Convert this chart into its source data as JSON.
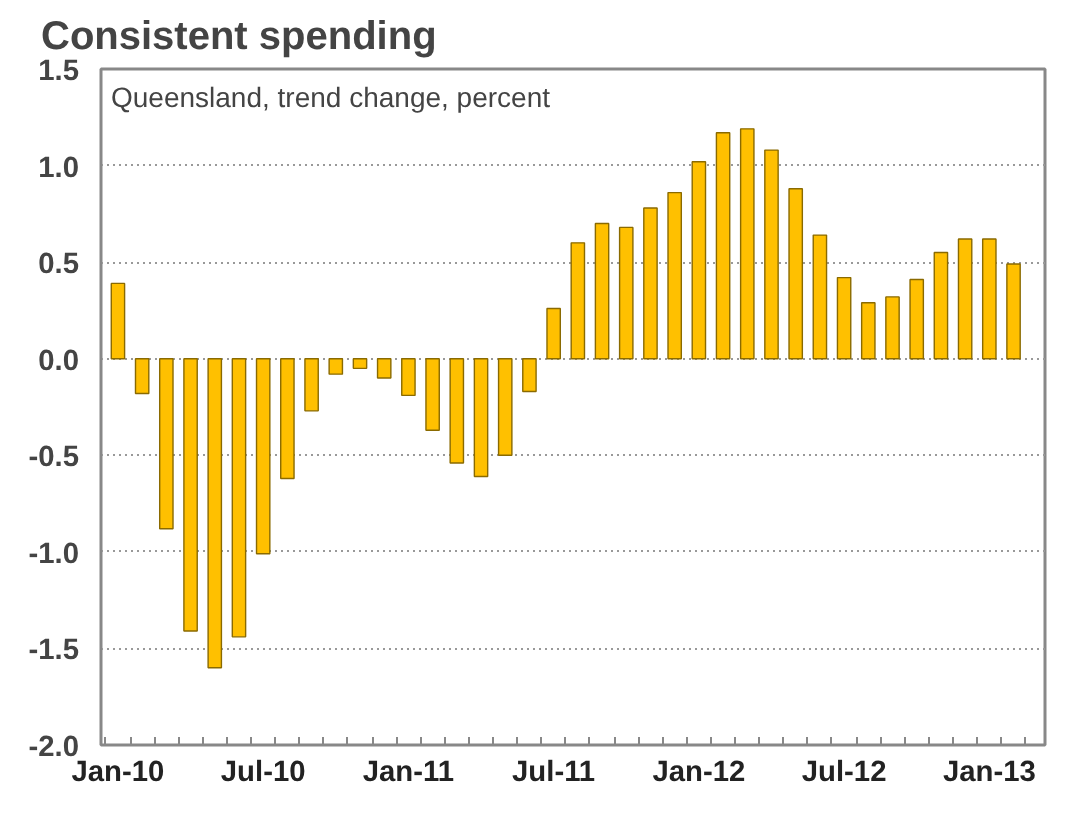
{
  "chart_data": {
    "type": "bar",
    "title": "Consistent spending",
    "subtitle": "Queensland, trend change, percent",
    "categories": [
      "Jan-10",
      null,
      null,
      null,
      null,
      null,
      "Jul-10",
      null,
      null,
      null,
      null,
      null,
      "Jan-11",
      null,
      null,
      null,
      null,
      null,
      "Jul-11",
      null,
      null,
      null,
      null,
      null,
      "Jan-12",
      null,
      null,
      null,
      null,
      null,
      "Jul-12",
      null,
      null,
      null,
      null,
      null,
      "Jan-13",
      null
    ],
    "values": [
      0.39,
      -0.18,
      -0.88,
      -1.41,
      -1.6,
      -1.44,
      -1.01,
      -0.62,
      -0.27,
      -0.08,
      -0.05,
      -0.1,
      -0.19,
      -0.37,
      -0.54,
      -0.61,
      -0.5,
      -0.17,
      0.26,
      0.6,
      0.7,
      0.68,
      0.78,
      0.86,
      1.02,
      1.17,
      1.19,
      1.08,
      0.88,
      0.64,
      0.42,
      0.29,
      0.32,
      0.41,
      0.55,
      0.62,
      0.62,
      0.49
    ],
    "color": "#ffc000",
    "ylim": [
      -2.0,
      1.5
    ],
    "yticks": [
      {
        "value": -2.0,
        "label": "-2.0"
      },
      {
        "value": -1.5,
        "label": "-1.5"
      },
      {
        "value": -1.0,
        "label": "-1.0"
      },
      {
        "value": -0.5,
        "label": "-0.5"
      },
      {
        "value": 0.0,
        "label": "0.0"
      },
      {
        "value": 0.5,
        "label": "0.5"
      },
      {
        "value": 1.0,
        "label": "1.0"
      },
      {
        "value": 1.5,
        "label": "1.5"
      }
    ],
    "grid": "y"
  }
}
